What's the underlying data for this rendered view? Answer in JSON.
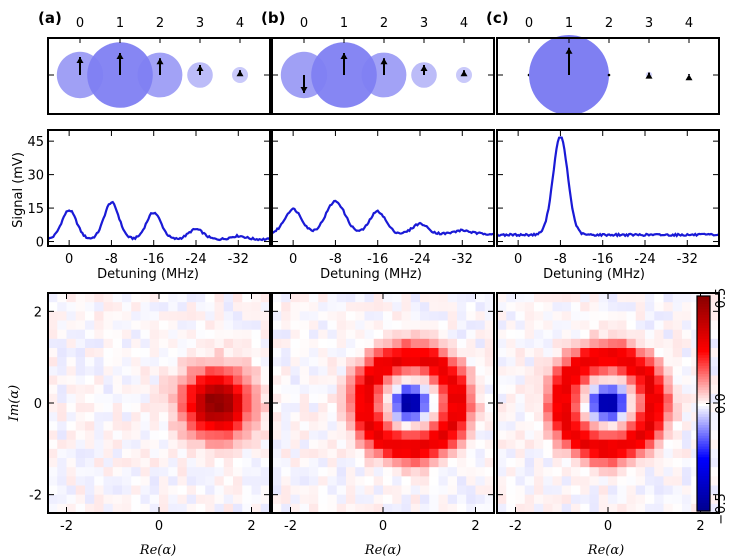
{
  "chart_data": [
    {
      "type": "bubble",
      "panel": "(a)",
      "x_ticks": [
        "0",
        "1",
        "2",
        "3",
        "4"
      ],
      "bubbles": [
        {
          "n": 0,
          "size": 0.58,
          "phase": "up",
          "arrow": 0.45
        },
        {
          "n": 1,
          "size": 0.82,
          "phase": "up",
          "arrow": 0.55
        },
        {
          "n": 2,
          "size": 0.56,
          "phase": "up",
          "arrow": 0.42
        },
        {
          "n": 3,
          "size": 0.32,
          "phase": "up",
          "arrow": 0.25
        },
        {
          "n": 4,
          "size": 0.2,
          "phase": "up",
          "arrow": 0.12
        }
      ]
    },
    {
      "type": "bubble",
      "panel": "(b)",
      "x_ticks": [
        "0",
        "1",
        "2",
        "3",
        "4"
      ],
      "bubbles": [
        {
          "n": 0,
          "size": 0.58,
          "phase": "down",
          "arrow": 0.45
        },
        {
          "n": 1,
          "size": 0.82,
          "phase": "up",
          "arrow": 0.55
        },
        {
          "n": 2,
          "size": 0.56,
          "phase": "up",
          "arrow": 0.42
        },
        {
          "n": 3,
          "size": 0.32,
          "phase": "up",
          "arrow": 0.25
        },
        {
          "n": 4,
          "size": 0.2,
          "phase": "up",
          "arrow": 0.12
        }
      ]
    },
    {
      "type": "bubble",
      "panel": "(c)",
      "x_ticks": [
        "0",
        "1",
        "2",
        "3",
        "4"
      ],
      "bubbles": [
        {
          "n": 0,
          "size": 0.0,
          "phase": "up",
          "arrow": 0.0
        },
        {
          "n": 1,
          "size": 1.0,
          "phase": "up",
          "arrow": 0.68
        },
        {
          "n": 2,
          "size": 0.0,
          "phase": "up",
          "arrow": 0.0
        },
        {
          "n": 3,
          "size": 0.08,
          "phase": "up",
          "arrow": 0.06
        },
        {
          "n": 4,
          "size": 0.03,
          "phase": "up",
          "arrow": 0.02
        }
      ]
    },
    {
      "type": "line",
      "xlabel": "Detuning (MHz)",
      "ylabel": "Signal (mV)",
      "xlim": [
        4,
        -38
      ],
      "ylim": [
        -2,
        50
      ],
      "x_ticks": [
        0,
        -8,
        -16,
        -24,
        -32
      ],
      "x_tick_labels": [
        "0",
        "-8",
        "-16",
        "-24",
        "-32"
      ],
      "y_ticks": [
        0,
        15,
        30,
        45
      ],
      "y_tick_labels": [
        "0",
        "15",
        "30",
        "45"
      ],
      "baseline": 1,
      "peaks": [
        {
          "center": 0,
          "height": 13,
          "width": 1.4
        },
        {
          "center": -8,
          "height": 16.5,
          "width": 1.4
        },
        {
          "center": -16,
          "height": 12,
          "width": 1.4
        },
        {
          "center": -24,
          "height": 4.5,
          "width": 1.4
        },
        {
          "center": -32,
          "height": 1.5,
          "width": 1.4
        }
      ]
    },
    {
      "type": "line",
      "xlabel": "Detuning (MHz)",
      "xlim": [
        4,
        -38
      ],
      "ylim": [
        -2,
        50
      ],
      "x_ticks": [
        0,
        -8,
        -16,
        -24,
        -32
      ],
      "x_tick_labels": [
        "0",
        "-8",
        "-16",
        "-24",
        "-32"
      ],
      "baseline": 3.5,
      "peaks": [
        {
          "center": 0,
          "height": 11,
          "width": 1.6
        },
        {
          "center": -8,
          "height": 14.5,
          "width": 1.8
        },
        {
          "center": -16,
          "height": 10,
          "width": 1.5
        },
        {
          "center": -24,
          "height": 4.5,
          "width": 1.4
        },
        {
          "center": -32,
          "height": 1.5,
          "width": 1.4
        }
      ]
    },
    {
      "type": "line",
      "xlabel": "Detuning (MHz)",
      "xlim": [
        4,
        -38
      ],
      "ylim": [
        -2,
        50
      ],
      "x_ticks": [
        0,
        -8,
        -16,
        -24,
        -32
      ],
      "x_tick_labels": [
        "0",
        "-8",
        "-16",
        "-24",
        "-32"
      ],
      "baseline": 3,
      "peaks": [
        {
          "center": -8,
          "height": 44,
          "width": 1.4
        }
      ]
    },
    {
      "type": "heatmap",
      "xlabel": "Re(α)",
      "ylabel": "Im(α)",
      "xlim": [
        -2.4,
        2.4
      ],
      "ylim": [
        -2.4,
        2.4
      ],
      "x_ticks": [
        -2,
        0,
        2
      ],
      "x_tick_labels": [
        "-2",
        "0",
        "2"
      ],
      "y_ticks": [
        -2,
        0,
        2
      ],
      "y_tick_labels": [
        "-2",
        "0",
        "2"
      ],
      "grid_n": 24,
      "model": "coherent",
      "center": [
        1.25,
        0.0
      ],
      "ring_radius": 0,
      "peak": 0.5
    },
    {
      "type": "heatmap",
      "xlabel": "Re(α)",
      "xlim": [
        -2.4,
        2.4
      ],
      "ylim": [
        -2.4,
        2.4
      ],
      "x_ticks": [
        -2,
        0,
        2
      ],
      "x_tick_labels": [
        "-2",
        "0",
        "2"
      ],
      "grid_n": 24,
      "model": "ring",
      "center": [
        0.6,
        0.0
      ],
      "ring_radius": 1.0,
      "peak": 0.3,
      "dip": -0.55
    },
    {
      "type": "heatmap",
      "xlabel": "Re(α)",
      "xlim": [
        -2.4,
        2.4
      ],
      "ylim": [
        -2.4,
        2.4
      ],
      "x_ticks": [
        -2,
        0,
        2
      ],
      "x_tick_labels": [
        "-2",
        "0",
        "2"
      ],
      "grid_n": 24,
      "model": "ring",
      "center": [
        0.0,
        0.0
      ],
      "ring_radius": 1.0,
      "peak": 0.3,
      "dip": -0.55
    }
  ],
  "labels": {
    "panel_a": "(a)",
    "panel_b": "(b)",
    "panel_c": "(c)",
    "signal_ylabel": "Signal (mV)",
    "detuning_label": "Detuning (MHz)",
    "re_alpha": "Re(α)",
    "im_alpha": "Im(α)"
  },
  "colorbar": {
    "vmin": -0.5,
    "vmax": 0.5,
    "ticks": [
      0.5,
      0.0,
      -0.5
    ],
    "tick_labels": [
      "0.5",
      "0.0",
      "−0.5"
    ],
    "colormap": "seismic",
    "colors": {
      "neg": "#00008b",
      "zero": "#ffffff",
      "pos": "#8b0000"
    }
  },
  "colors": {
    "line": "#1a1ad6",
    "bubble_fill": "#7f7ff2",
    "arrow": "#000000"
  }
}
